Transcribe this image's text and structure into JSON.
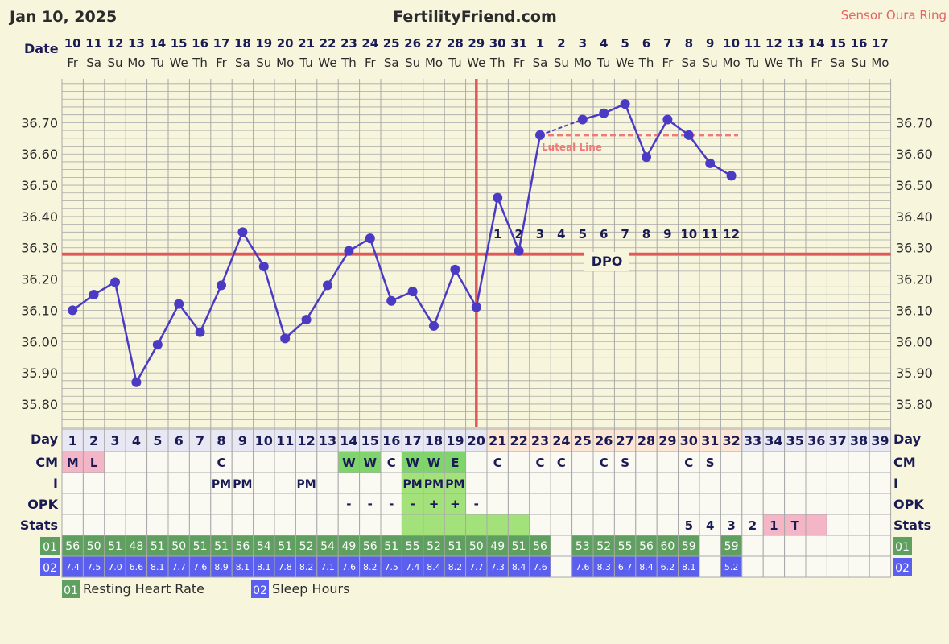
{
  "header": {
    "date": "Jan 10, 2025",
    "site": "FertilityFriend.com",
    "sensor": "Sensor Oura Ring"
  },
  "labels": {
    "date_row": "Date",
    "day_row": "Day",
    "cm_row": "CM",
    "i_row": "I",
    "opk_row": "OPK",
    "stats_row": "Stats",
    "rhr_code": "01",
    "sleep_code": "02",
    "rhr_legend": "Resting Heart Rate",
    "sleep_legend": "Sleep Hours",
    "luteal_line": "Luteal Line",
    "dpo": "DPO"
  },
  "colors": {
    "background": "#f7f5dc",
    "grid": "#a8a8a8",
    "temp_line": "#4b3bc4",
    "coverline": "#e05858",
    "ovulation_line": "#e05858",
    "luteal_line": "#f07878",
    "fertile_green": "#a3e27b",
    "cm_green": "#7fd46b",
    "menses_pink": "#f4b5c6",
    "rhr_green": "#5f9f5f",
    "sleep_blue": "#5b5ff0"
  },
  "chart_data": {
    "type": "line",
    "ylabel": "",
    "ylim": [
      35.72,
      36.84
    ],
    "yticks": [
      "36.70",
      "36.60",
      "36.50",
      "36.40",
      "36.30",
      "36.20",
      "36.10",
      "36.00",
      "35.90",
      "35.80"
    ],
    "dates": [
      "10",
      "11",
      "12",
      "13",
      "14",
      "15",
      "16",
      "17",
      "18",
      "19",
      "20",
      "21",
      "22",
      "23",
      "24",
      "25",
      "26",
      "27",
      "28",
      "29",
      "30",
      "31",
      "1",
      "2",
      "3",
      "4",
      "5",
      "6",
      "7",
      "8",
      "9",
      "10",
      "11",
      "12",
      "13",
      "14",
      "15",
      "16",
      "17"
    ],
    "weekdays": [
      "Fr",
      "Sa",
      "Su",
      "Mo",
      "Tu",
      "We",
      "Th",
      "Fr",
      "Sa",
      "Su",
      "Mo",
      "Tu",
      "We",
      "Th",
      "Fr",
      "Sa",
      "Su",
      "Mo",
      "Tu",
      "We",
      "Th",
      "Fr",
      "Sa",
      "Su",
      "Mo",
      "Tu",
      "We",
      "Th",
      "Fr",
      "Sa",
      "Su",
      "Mo",
      "Tu",
      "We",
      "Th",
      "Fr",
      "Sa",
      "Su",
      "Mo"
    ],
    "cycle_days": [
      "1",
      "2",
      "3",
      "4",
      "5",
      "6",
      "7",
      "8",
      "9",
      "10",
      "11",
      "12",
      "13",
      "14",
      "15",
      "16",
      "17",
      "18",
      "19",
      "20",
      "21",
      "22",
      "23",
      "24",
      "25",
      "26",
      "27",
      "28",
      "29",
      "30",
      "31",
      "32",
      "33",
      "34",
      "35",
      "36",
      "37",
      "38",
      "39"
    ],
    "temperatures": [
      36.1,
      36.15,
      36.19,
      35.87,
      35.99,
      36.12,
      36.03,
      36.18,
      36.35,
      36.24,
      36.01,
      36.07,
      36.18,
      36.29,
      36.33,
      36.13,
      36.16,
      36.05,
      36.23,
      36.11,
      36.46,
      36.29,
      36.66,
      null,
      36.71,
      36.73,
      36.76,
      36.59,
      36.71,
      36.66,
      36.57,
      36.53
    ],
    "coverline": 36.28,
    "ovulation_day": 20,
    "dpo_labels": [
      "1",
      "2",
      "3",
      "4",
      "5",
      "6",
      "7",
      "8",
      "9",
      "10",
      "11",
      "12"
    ],
    "dpo_start_day": 21,
    "luteal_line": {
      "value": 36.66,
      "from_day": 23,
      "to_day": 33
    },
    "cm": [
      "M",
      "L",
      "",
      "",
      "",
      "",
      "",
      "C",
      "",
      "",
      "",
      "",
      "",
      "W",
      "W",
      "C",
      "W",
      "W",
      "E",
      "",
      "C",
      "",
      "C",
      "C",
      "",
      "C",
      "S",
      "",
      "",
      "C",
      "S",
      "",
      "",
      "",
      "",
      "",
      "",
      "",
      ""
    ],
    "intercourse": [
      "",
      "",
      "",
      "",
      "",
      "",
      "",
      "PM",
      "PM",
      "",
      "",
      "PM",
      "",
      "",
      "",
      "",
      "PM",
      "PM",
      "PM",
      "",
      "",
      "",
      "",
      "",
      "",
      "",
      "",
      "",
      "",
      "",
      "",
      "",
      "",
      "",
      "",
      "",
      "",
      "",
      ""
    ],
    "opk": [
      "",
      "",
      "",
      "",
      "",
      "",
      "",
      "",
      "",
      "",
      "",
      "",
      "",
      "-",
      "-",
      "-",
      "-",
      "+",
      "+",
      "-",
      "",
      "",
      "",
      "",
      "",
      "",
      "",
      "",
      "",
      "",
      "",
      "",
      "",
      "",
      "",
      "",
      "",
      "",
      ""
    ],
    "stats": [
      "",
      "",
      "",
      "",
      "",
      "",
      "",
      "",
      "",
      "",
      "",
      "",
      "",
      "",
      "",
      "",
      "",
      "",
      "",
      "",
      "",
      "",
      "",
      "",
      "",
      "",
      "",
      "",
      "",
      "5",
      "4",
      "3",
      "2",
      "1",
      "T",
      "",
      "",
      "",
      ""
    ],
    "fertile_days": [
      17,
      22
    ],
    "stats_pink_days": [
      34,
      36
    ],
    "resting_heart_rate": [
      "56",
      "50",
      "51",
      "48",
      "51",
      "50",
      "51",
      "51",
      "56",
      "54",
      "51",
      "52",
      "54",
      "49",
      "56",
      "51",
      "55",
      "52",
      "51",
      "50",
      "49",
      "51",
      "56",
      "",
      "53",
      "52",
      "55",
      "56",
      "60",
      "59",
      "",
      "59",
      "",
      "",
      "",
      "",
      "",
      "",
      ""
    ],
    "sleep_hours": [
      "7.4",
      "7.5",
      "7.0",
      "6.6",
      "8.1",
      "7.7",
      "7.6",
      "8.9",
      "8.1",
      "8.1",
      "7.8",
      "8.2",
      "7.1",
      "7.6",
      "8.2",
      "7.5",
      "7.4",
      "8.4",
      "8.2",
      "7.7",
      "7.3",
      "8.4",
      "7.6",
      "",
      "7.6",
      "8.3",
      "6.7",
      "8.4",
      "6.2",
      "8.1",
      "",
      "5.2",
      "",
      "",
      "",
      "",
      "",
      "",
      ""
    ]
  }
}
